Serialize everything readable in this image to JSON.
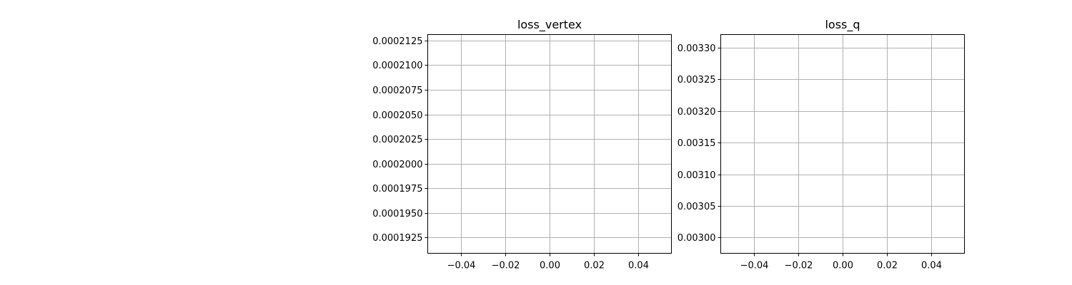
{
  "chart_data": [
    {
      "type": "line",
      "title": "loss_vertex",
      "xlabel": "",
      "ylabel": "",
      "series": [],
      "xlim": [
        -0.055,
        0.055
      ],
      "ylim": [
        0.0001909,
        0.0002131
      ],
      "xticks": [
        -0.04,
        -0.02,
        0.0,
        0.02,
        0.04
      ],
      "xtick_labels": [
        "−0.04",
        "−0.02",
        "0.00",
        "0.02",
        "0.04"
      ],
      "yticks": [
        0.0001925,
        0.000195,
        0.0001975,
        0.0002,
        0.0002025,
        0.000205,
        0.0002075,
        0.00021,
        0.0002125
      ],
      "ytick_labels": [
        "0.0001925",
        "0.0001950",
        "0.0001975",
        "0.0002000",
        "0.0002025",
        "0.0002050",
        "0.0002075",
        "0.0002100",
        "0.0002125"
      ],
      "grid": true
    },
    {
      "type": "line",
      "title": "loss_q",
      "xlabel": "",
      "ylabel": "",
      "series": [],
      "xlim": [
        -0.055,
        0.055
      ],
      "ylim": [
        0.002975,
        0.003321
      ],
      "xticks": [
        -0.04,
        -0.02,
        0.0,
        0.02,
        0.04
      ],
      "xtick_labels": [
        "−0.04",
        "−0.02",
        "0.00",
        "0.02",
        "0.04"
      ],
      "yticks": [
        0.003,
        0.00305,
        0.0031,
        0.00315,
        0.0032,
        0.00325,
        0.0033
      ],
      "ytick_labels": [
        "0.00300",
        "0.00305",
        "0.00310",
        "0.00315",
        "0.00320",
        "0.00325",
        "0.00330"
      ],
      "grid": true
    }
  ]
}
